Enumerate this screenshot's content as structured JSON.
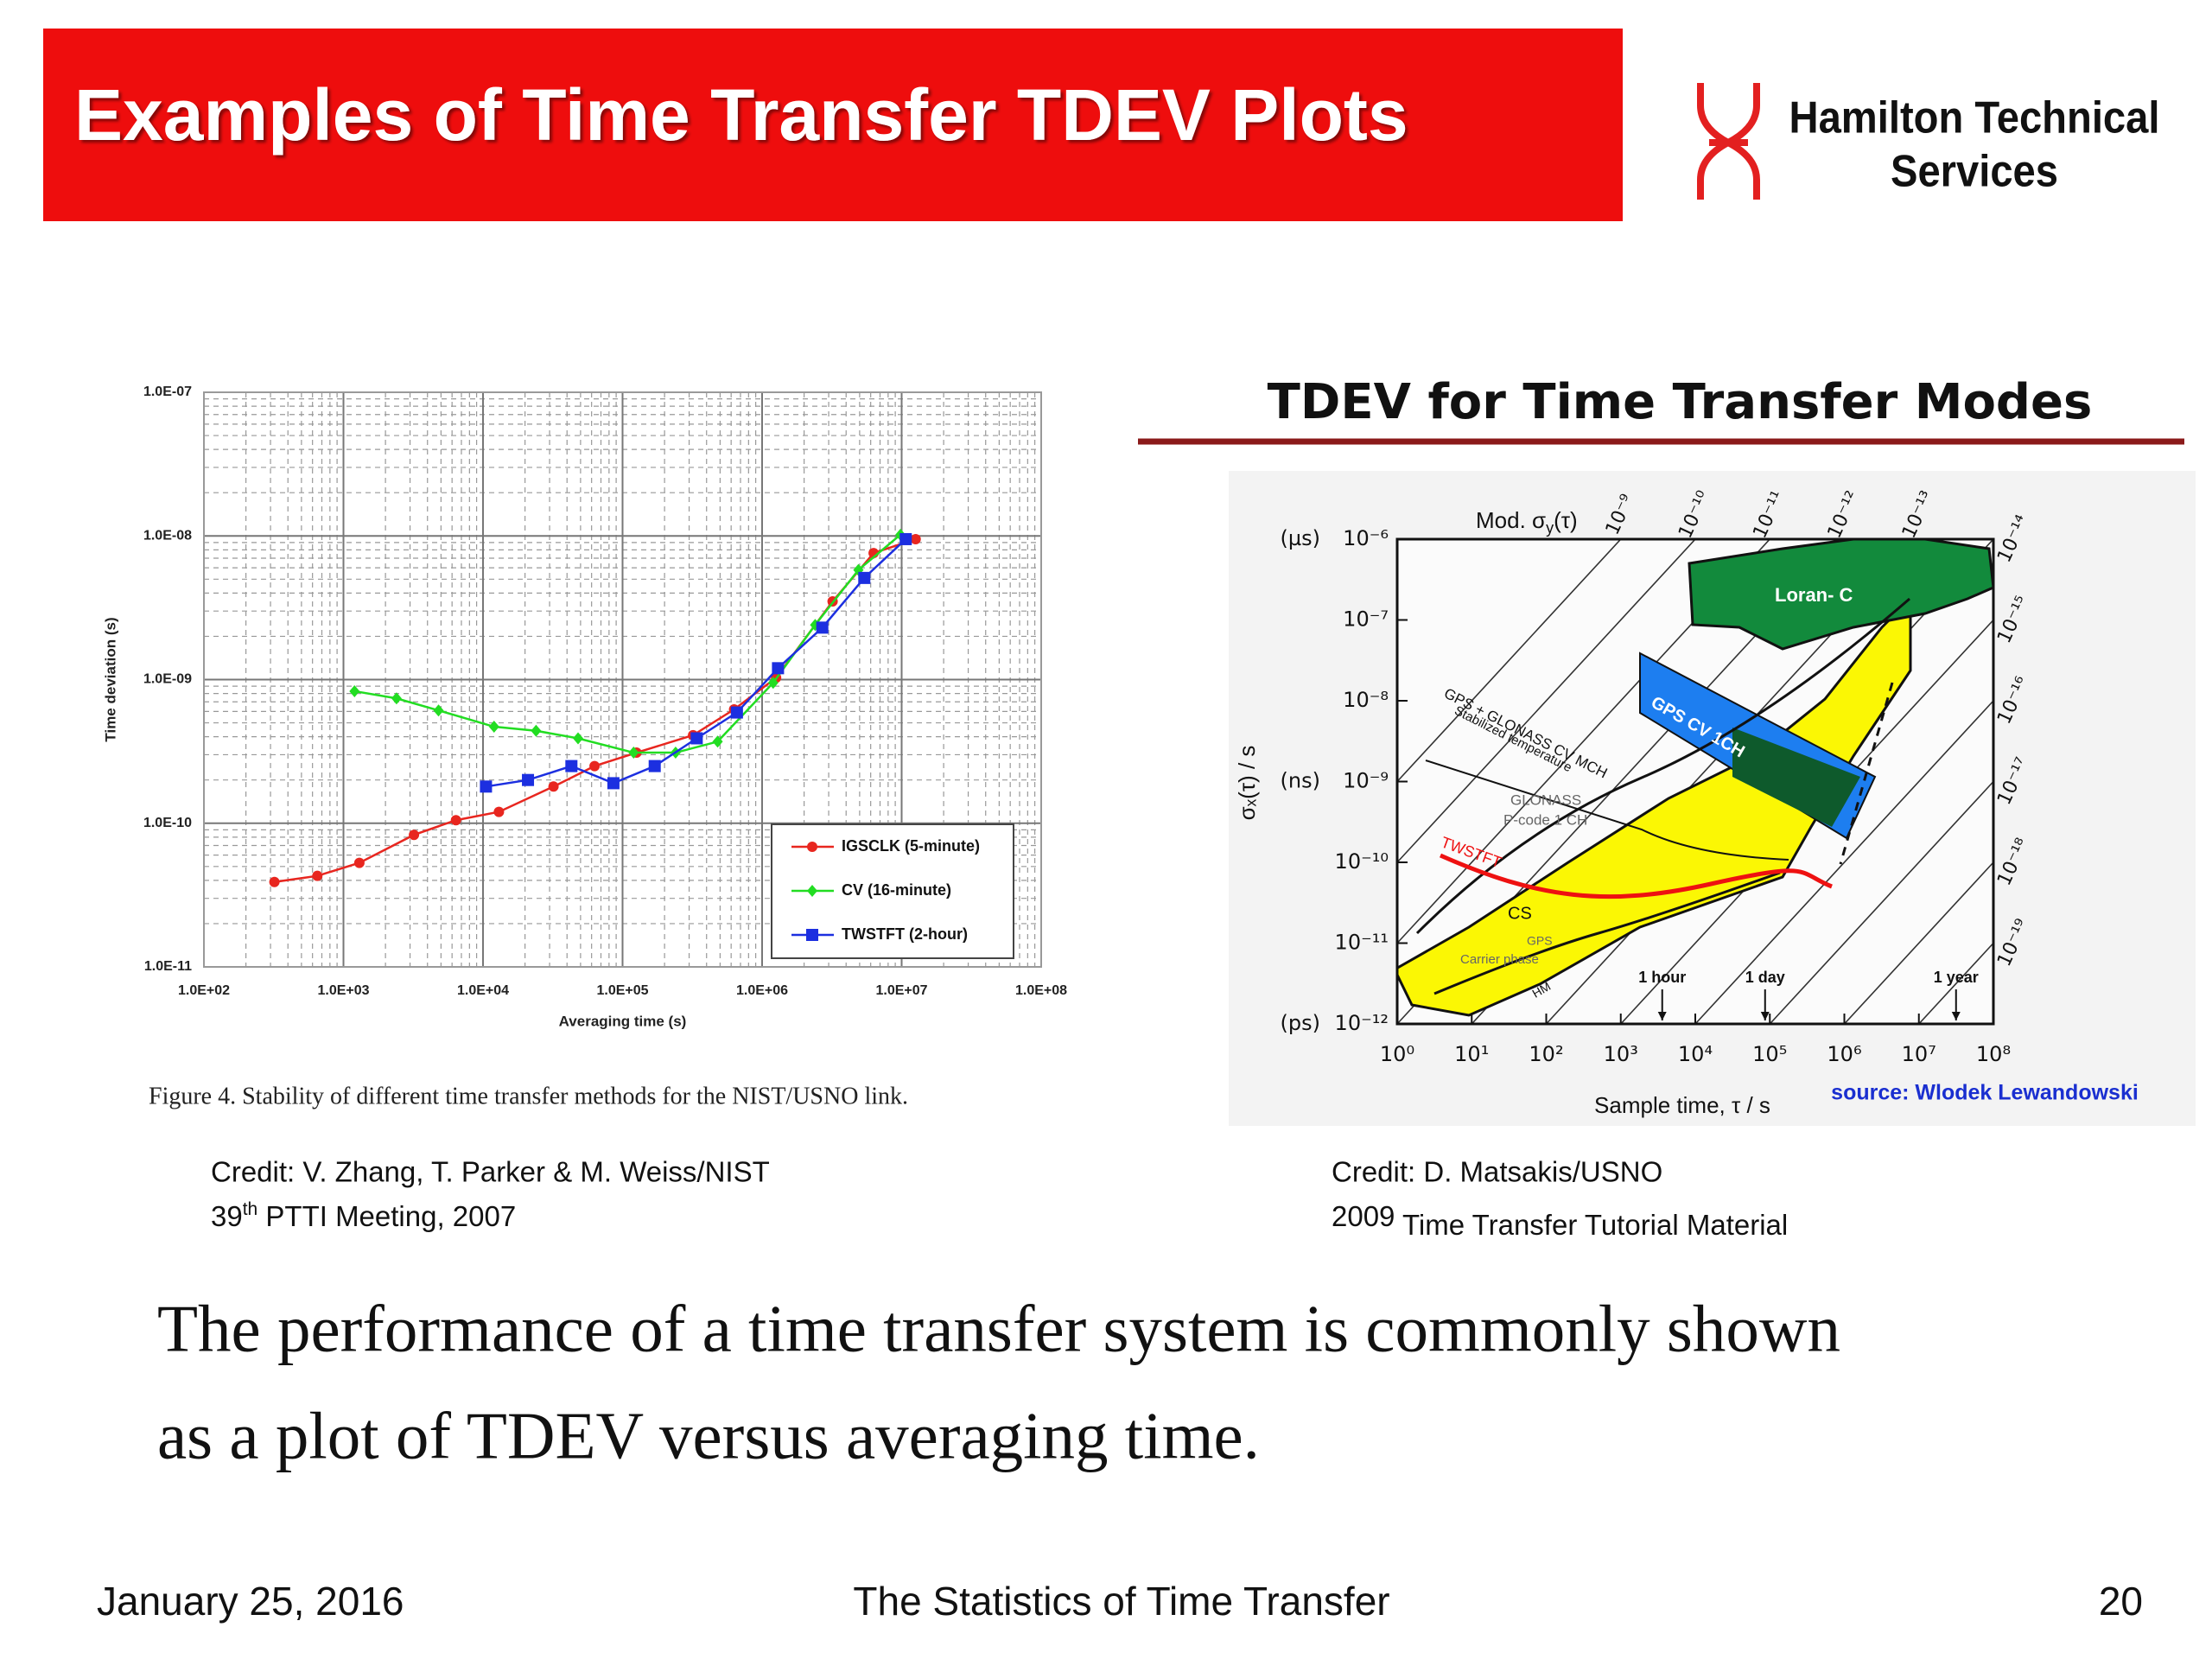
{
  "header": {
    "title": "Examples of Time Transfer TDEV Plots",
    "logo_text": [
      "Hamilton Technical",
      "Services"
    ]
  },
  "chart_data": [
    {
      "type": "line",
      "x_label": "Averaging time (s)",
      "y_label": "Time deviation (s)",
      "log_x": true,
      "log_y": true,
      "grid": true,
      "legend_position": "lower right",
      "xlim": [
        100,
        100000000
      ],
      "ylim": [
        1e-11,
        1e-07
      ],
      "xticks": [
        {
          "value": 100,
          "label": "1.0E+02"
        },
        {
          "value": 1000,
          "label": "1.0E+03"
        },
        {
          "value": 10000,
          "label": "1.0E+04"
        },
        {
          "value": 100000,
          "label": "1.0E+05"
        },
        {
          "value": 1000000,
          "label": "1.0E+06"
        },
        {
          "value": 10000000,
          "label": "1.0E+07"
        },
        {
          "value": 100000000,
          "label": "1.0E+08"
        }
      ],
      "yticks": [
        {
          "value": 1e-11,
          "label": "1.0E-11"
        },
        {
          "value": 1e-10,
          "label": "1.0E-10"
        },
        {
          "value": 1e-09,
          "label": "1.0E-09"
        },
        {
          "value": 1e-08,
          "label": "1.0E-08"
        },
        {
          "value": 1e-07,
          "label": "1.0E-07"
        }
      ],
      "series": [
        {
          "name": "IGSCLK (5-minute)",
          "color": "#e8261f",
          "marker": "circle",
          "x": [
            320,
            650,
            1300,
            3200,
            6400,
            13000,
            32000,
            63000,
            126000,
            320000,
            630000,
            1260000,
            3200000,
            6300000,
            12600000
          ],
          "values": [
            3.9e-11,
            4.3e-11,
            5.3e-11,
            8.3e-11,
            1.05e-10,
            1.2e-10,
            1.8e-10,
            2.5e-10,
            3.1e-10,
            4.1e-10,
            6.2e-10,
            1.03e-09,
            3.5e-09,
            7.6e-09,
            9.5e-09
          ]
        },
        {
          "name": "CV (16-minute)",
          "color": "#22dd22",
          "marker": "diamond",
          "x": [
            1200,
            2400,
            4800,
            12000,
            24000,
            48000,
            120000,
            240000,
            480000,
            1200000,
            2400000,
            4900000,
            9800000
          ],
          "values": [
            8.3e-10,
            7.4e-10,
            6.1e-10,
            4.7e-10,
            4.4e-10,
            3.9e-10,
            3.1e-10,
            3.1e-10,
            3.7e-10,
            9.5e-10,
            2.4e-09,
            5.8e-09,
            1.02e-08
          ]
        },
        {
          "name": "TWSTFT (2-hour)",
          "color": "#1c2fe0",
          "marker": "square",
          "x": [
            10500,
            21000,
            43000,
            86000,
            170000,
            340000,
            660000,
            1300000,
            2700000,
            5400000,
            10700000
          ],
          "values": [
            1.8e-10,
            2e-10,
            2.5e-10,
            1.9e-10,
            2.5e-10,
            3.9e-10,
            5.9e-10,
            1.2e-09,
            2.3e-09,
            5.1e-09,
            9.5e-09
          ]
        }
      ]
    },
    {
      "type": "region",
      "title": "TDEV for Time Transfer Modes",
      "x_label": "Sample time, τ / s",
      "y_label": "σₓ(τ) / s",
      "mod_label": {
        "prefix": "Mod. σ",
        "sub": "y",
        "suffix": "(τ)"
      },
      "source": "source: Wlodek Lewandowski",
      "log_x": true,
      "log_y": true,
      "xlim": [
        1,
        100000000
      ],
      "ylim": [
        1e-12,
        1e-06
      ],
      "xticks": [
        {
          "value": 1,
          "label": "10⁰"
        },
        {
          "value": 10,
          "label": "10¹"
        },
        {
          "value": 100,
          "label": "10²"
        },
        {
          "value": 1000,
          "label": "10³"
        },
        {
          "value": 10000,
          "label": "10⁴"
        },
        {
          "value": 100000,
          "label": "10⁵"
        },
        {
          "value": 1000000,
          "label": "10⁶"
        },
        {
          "value": 10000000,
          "label": "10⁷"
        },
        {
          "value": 100000000,
          "label": "10⁸"
        }
      ],
      "yticks": [
        {
          "value": 1e-12,
          "label": "10⁻¹²"
        },
        {
          "value": 1e-11,
          "label": "10⁻¹¹"
        },
        {
          "value": 1e-10,
          "label": "10⁻¹⁰"
        },
        {
          "value": 1e-09,
          "label": "10⁻⁹"
        },
        {
          "value": 1e-08,
          "label": "10⁻⁸"
        },
        {
          "value": 1e-07,
          "label": "10⁻⁷"
        },
        {
          "value": 1e-06,
          "label": "10⁻⁶"
        }
      ],
      "y_units": [
        {
          "value": 1e-06,
          "label": "(µs)"
        },
        {
          "value": 1e-09,
          "label": "(ns)"
        },
        {
          "value": 1e-12,
          "label": "(ps)"
        }
      ],
      "reference_lines": [
        {
          "value": 1e-09,
          "label": "10⁻⁹"
        },
        {
          "value": 1e-10,
          "label": "10⁻¹⁰"
        },
        {
          "value": 1e-11,
          "label": "10⁻¹¹"
        },
        {
          "value": 1e-12,
          "label": "10⁻¹²"
        },
        {
          "value": 1e-13,
          "label": "10⁻¹³"
        },
        {
          "value": 1e-14,
          "label": "10⁻¹⁴"
        },
        {
          "value": 1e-15,
          "label": "10⁻¹⁵"
        },
        {
          "value": 1e-16,
          "label": "10⁻¹⁶"
        },
        {
          "value": 1e-17,
          "label": "10⁻¹⁷"
        },
        {
          "value": 1e-18,
          "label": "10⁻¹⁸"
        },
        {
          "value": 1e-19,
          "label": "10⁻¹⁹"
        }
      ],
      "markers": [
        {
          "value": 3600,
          "label": "1 hour"
        },
        {
          "value": 86400,
          "label": "1 day"
        },
        {
          "value": 31536000,
          "label": "1 year"
        }
      ],
      "annotations": [
        "Loran- C",
        "GPS CV 1CH",
        "GPS + GLONASS CV MCH",
        "Stabilized temperature",
        "GLONASS",
        "P-code 1 CH",
        "TWSTFT",
        "CS",
        "GPS",
        "Carrier phase",
        "HM"
      ]
    }
  ],
  "figure_caption": "Figure 4.  Stability of different time transfer methods for the NIST/USNO link.",
  "credits": [
    {
      "line1": "Credit: V. Zhang, T. Parker & M. Weiss/NIST",
      "line2": {
        "num": "39",
        "sup": "th",
        "rest": " PTTI Meeting, 2007"
      }
    },
    {
      "line1": "Credit: D. Matsakis/USNO",
      "line2": {
        "num": "2009",
        "sup": "",
        "rest": " Time Transfer Tutorial Material"
      }
    }
  ],
  "body": [
    "The performance of a time transfer system is commonly shown",
    "as a plot of TDEV versus averaging time."
  ],
  "footer": {
    "date": "January 25, 2016",
    "title": "The Statistics of Time Transfer",
    "page": "20"
  }
}
